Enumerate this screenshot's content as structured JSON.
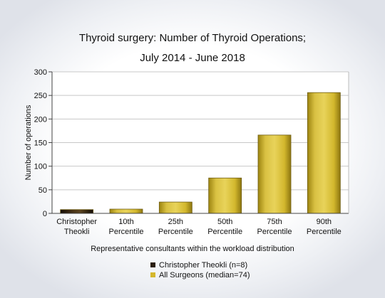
{
  "chart_data": {
    "type": "bar",
    "title_lines": [
      "Thyroid surgery: Number of Thyroid Operations;",
      "July 2014 - June 2018"
    ],
    "xlabel": "Representative consultants within the workload distribution",
    "ylabel": "Number of operations",
    "ylim": [
      0,
      300
    ],
    "yticks": [
      0,
      50,
      100,
      150,
      200,
      250,
      300
    ],
    "grid": true,
    "legend_position": "bottom",
    "categories": [
      [
        "Christopher",
        "Theokli"
      ],
      [
        "10th",
        "Percentile"
      ],
      [
        "25th",
        "Percentile"
      ],
      [
        "50th",
        "Percentile"
      ],
      [
        "75th",
        "Percentile"
      ],
      [
        "90th",
        "Percentile"
      ]
    ],
    "values": [
      8,
      9,
      24,
      75,
      166,
      256
    ],
    "bar_series": [
      0,
      1,
      1,
      1,
      1,
      1
    ],
    "series": [
      {
        "name": "Christopher Theokli (n=8)",
        "color": "#2b1d0e"
      },
      {
        "name": "All Surgeons (median=74)",
        "color": "#d4b72c"
      }
    ]
  }
}
